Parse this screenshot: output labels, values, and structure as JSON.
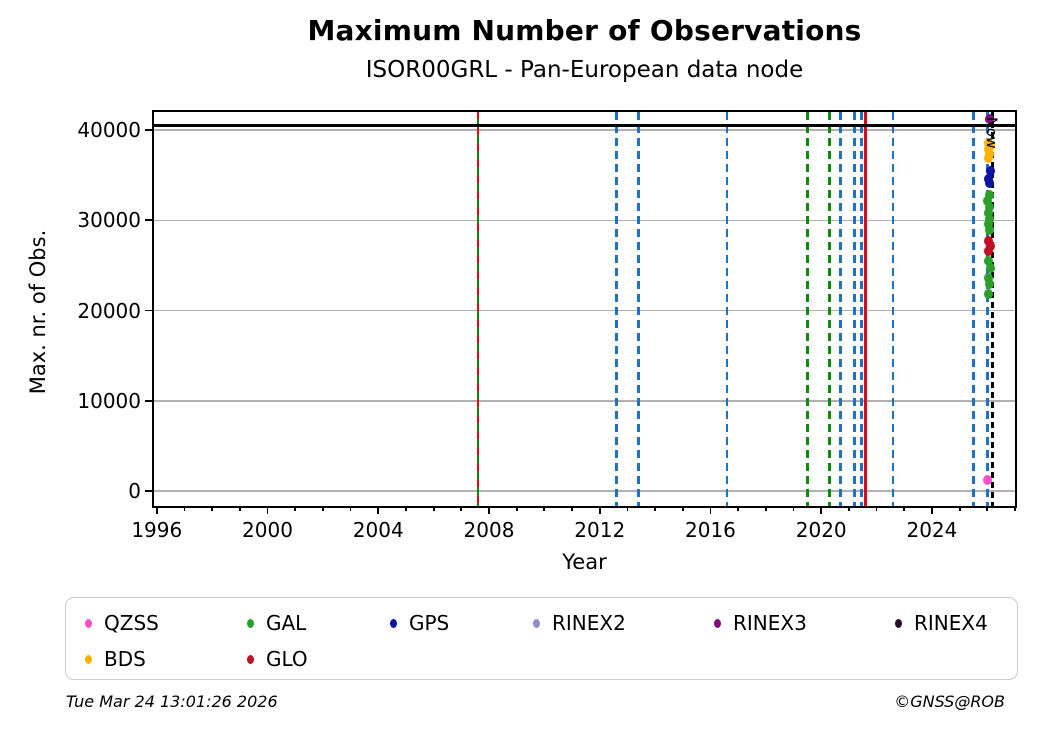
{
  "chart_data": {
    "type": "scatter",
    "title": "Maximum Number of Observations",
    "subtitle": "ISOR00GRL - Pan-European data node",
    "xlabel": "Year",
    "ylabel": "Max. nr. of Obs.",
    "xlim": [
      1995.9,
      2027.0
    ],
    "ylim": [
      -1650,
      42000
    ],
    "x_major_ticks": [
      1996,
      2000,
      2004,
      2008,
      2012,
      2016,
      2020,
      2024
    ],
    "x_minor_tick_step": 1,
    "y_ticks": [
      0,
      10000,
      20000,
      30000,
      40000
    ],
    "grid": "horizontal-only",
    "grid_color": "#b0b0b0",
    "hlines": [
      {
        "y": 40500,
        "color": "#000000",
        "style": "solid",
        "name": "max-obs-reference-line"
      }
    ],
    "vlines": [
      {
        "x": 2007.6,
        "color": "#0e860e",
        "style": "solid",
        "name": "gal-event-line"
      },
      {
        "x": 2007.6,
        "color": "#e30613",
        "style": "dashed-sparse",
        "name": "glo-event-overlay-line"
      },
      {
        "x": 2012.6,
        "color": "#2070c4",
        "style": "dashed",
        "name": "gps-event-line"
      },
      {
        "x": 2013.4,
        "color": "#2070c4",
        "style": "dashed",
        "name": "gps-event-line"
      },
      {
        "x": 2016.6,
        "color": "#2070c4",
        "style": "dashed",
        "name": "gps-event-line"
      },
      {
        "x": 2019.5,
        "color": "#128712",
        "style": "dashed",
        "name": "gal-event-line"
      },
      {
        "x": 2020.3,
        "color": "#128712",
        "style": "dashed",
        "name": "gal-event-line"
      },
      {
        "x": 2020.7,
        "color": "#2070c4",
        "style": "dashed",
        "name": "gps-event-line"
      },
      {
        "x": 2021.2,
        "color": "#2070c4",
        "style": "dashed",
        "name": "gps-event-line"
      },
      {
        "x": 2021.45,
        "color": "#2070c4",
        "style": "dashed",
        "name": "gps-event-line"
      },
      {
        "x": 2021.6,
        "color": "#e30613",
        "style": "solid",
        "name": "glo-event-line"
      },
      {
        "x": 2022.6,
        "color": "#2070c4",
        "style": "dashed",
        "name": "gps-event-line"
      },
      {
        "x": 2025.5,
        "color": "#2070c4",
        "style": "dashed",
        "name": "gps-event-line"
      },
      {
        "x": 2026.0,
        "color": "#2070c4",
        "style": "dashed",
        "name": "gps-event-line"
      },
      {
        "x": 2026.18,
        "color": "#000000",
        "style": "dashed-fine",
        "name": "now-line"
      }
    ],
    "now_annotation": {
      "text": "Now",
      "x": 2026.42,
      "y": 41400,
      "rotation_deg": 90
    },
    "series": [
      {
        "name": "QZSS",
        "color": "#ff4fc4",
        "points": [
          [
            2026.02,
            1230
          ]
        ]
      },
      {
        "name": "BDS",
        "color": "#ffb300",
        "points": [
          [
            2026.04,
            38600
          ],
          [
            2026.1,
            38250
          ],
          [
            2026.03,
            37850
          ],
          [
            2026.08,
            37400
          ],
          [
            2026.05,
            36950
          ]
        ]
      },
      {
        "name": "GPS",
        "color": "#0a15a0",
        "points": [
          [
            2026.12,
            35450
          ],
          [
            2026.03,
            34600
          ],
          [
            2026.08,
            34100
          ]
        ]
      },
      {
        "name": "GAL",
        "color": "#2aa02a",
        "points": [
          [
            2026.07,
            32800
          ],
          [
            2026.02,
            32150
          ],
          [
            2026.09,
            31500
          ],
          [
            2026.04,
            30800
          ],
          [
            2026.09,
            30150
          ],
          [
            2026.03,
            29550
          ],
          [
            2026.08,
            28950
          ],
          [
            2026.05,
            25450
          ],
          [
            2026.1,
            24750
          ],
          [
            2026.03,
            23650
          ],
          [
            2026.08,
            22950
          ],
          [
            2026.05,
            21800
          ]
        ]
      },
      {
        "name": "GLO",
        "color": "#c11022",
        "points": [
          [
            2026.04,
            27700
          ],
          [
            2026.1,
            27150
          ],
          [
            2026.06,
            26550
          ]
        ]
      },
      {
        "name": "RINEX3",
        "color": "#7c107c",
        "points": [
          [
            2026.09,
            41200
          ]
        ]
      }
    ],
    "legend_items": [
      {
        "label": "QZSS",
        "color": "#ff4fc4",
        "row": 0,
        "col": 0
      },
      {
        "label": "GAL",
        "color": "#2aa02a",
        "row": 0,
        "col": 1
      },
      {
        "label": "GPS",
        "color": "#0a15a0",
        "row": 0,
        "col": 2
      },
      {
        "label": "RINEX2",
        "color": "#8d8dd0",
        "row": 0,
        "col": 3
      },
      {
        "label": "RINEX3",
        "color": "#7c107c",
        "row": 0,
        "col": 4
      },
      {
        "label": "RINEX4",
        "color": "#2a0b2d",
        "row": 0,
        "col": 5
      },
      {
        "label": "BDS",
        "color": "#ffb300",
        "row": 1,
        "col": 0
      },
      {
        "label": "GLO",
        "color": "#c11022",
        "row": 1,
        "col": 1
      }
    ]
  },
  "footer": {
    "timestamp": "Tue Mar 24 13:01:26 2026",
    "credit": "©GNSS@ROB"
  }
}
